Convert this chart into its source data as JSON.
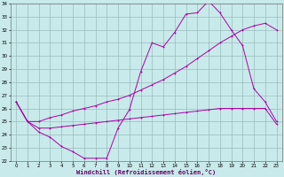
{
  "xlabel": "Windchill (Refroidissement éolien,°C)",
  "bg_color": "#c8eaea",
  "grid_color": "#99bbbb",
  "line_color": "#aa00aa",
  "xlim": [
    0,
    23
  ],
  "ylim": [
    22,
    34
  ],
  "xticks": [
    0,
    1,
    2,
    3,
    4,
    5,
    6,
    7,
    8,
    9,
    10,
    11,
    12,
    13,
    14,
    15,
    16,
    17,
    18,
    19,
    20,
    21,
    22,
    23
  ],
  "yticks": [
    22,
    23,
    24,
    25,
    26,
    27,
    28,
    29,
    30,
    31,
    32,
    33,
    34
  ],
  "series1_x": [
    0,
    1,
    2,
    3,
    4,
    5,
    6,
    7,
    8,
    9,
    10,
    11,
    12,
    13,
    14,
    15,
    16,
    17,
    18,
    19,
    20,
    21,
    22,
    23
  ],
  "series1_y": [
    26.5,
    25.0,
    24.2,
    23.8,
    23.1,
    22.7,
    22.2,
    22.2,
    22.2,
    24.5,
    25.9,
    28.8,
    31.0,
    30.7,
    31.8,
    33.2,
    33.3,
    34.2,
    33.3,
    32.0,
    30.8,
    27.5,
    26.5,
    25.0
  ],
  "series2_x": [
    0,
    1,
    2,
    3,
    4,
    5,
    6,
    7,
    8,
    9,
    10,
    11,
    12,
    13,
    14,
    15,
    16,
    17,
    18,
    19,
    20,
    21,
    22,
    23
  ],
  "series2_y": [
    26.5,
    25.0,
    25.0,
    25.3,
    25.5,
    25.8,
    26.0,
    26.2,
    26.5,
    26.7,
    27.0,
    27.4,
    27.8,
    28.2,
    28.7,
    29.2,
    29.8,
    30.4,
    31.0,
    31.5,
    32.0,
    32.3,
    32.5,
    32.0
  ],
  "series3_x": [
    0,
    1,
    2,
    3,
    4,
    5,
    6,
    7,
    8,
    9,
    10,
    11,
    12,
    13,
    14,
    15,
    16,
    17,
    18,
    19,
    20,
    21,
    22,
    23
  ],
  "series3_y": [
    26.5,
    25.0,
    24.5,
    24.5,
    24.6,
    24.7,
    24.8,
    24.9,
    25.0,
    25.1,
    25.2,
    25.3,
    25.4,
    25.5,
    25.6,
    25.7,
    25.8,
    25.9,
    26.0,
    26.0,
    26.0,
    26.0,
    26.0,
    24.8
  ]
}
